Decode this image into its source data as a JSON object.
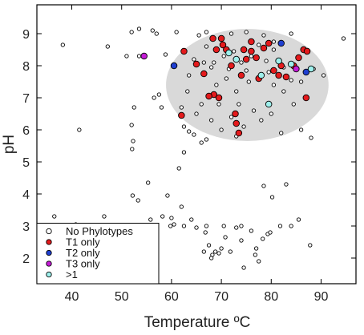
{
  "chart_data": {
    "type": "scatter",
    "xlabel": "Temperature ºC",
    "ylabel": "pH",
    "xlim": [
      33,
      97
    ],
    "ylim": [
      1.2,
      9.9
    ],
    "xticks": [
      40,
      50,
      60,
      70,
      80,
      90
    ],
    "yticks": [
      2,
      3,
      4,
      5,
      6,
      7,
      8,
      9
    ],
    "grid": false,
    "legend_position": "bottom-left",
    "highlight_region": {
      "shape": "ellipse",
      "fill": "#d9d9d9",
      "center": [
        75.2,
        7.4
      ],
      "x_radius": 16.3,
      "y_radius": 1.75
    },
    "series": [
      {
        "name": "No Phylotypes",
        "color": "#ffffff",
        "edge": "#000000",
        "size": "small",
        "points": [
          [
            38.2,
            8.65
          ],
          [
            41.5,
            6.0
          ],
          [
            36.5,
            3.3
          ],
          [
            40.8,
            3.05
          ],
          [
            46.5,
            3.3
          ],
          [
            47.2,
            8.6
          ],
          [
            49.0,
            2.7
          ],
          [
            50.0,
            3.0
          ],
          [
            48.5,
            2.3
          ],
          [
            51.0,
            8.3
          ],
          [
            52.0,
            9.05
          ],
          [
            53.5,
            9.15
          ],
          [
            53.5,
            8.3
          ],
          [
            52.5,
            6.7
          ],
          [
            52.0,
            6.15
          ],
          [
            52.3,
            5.65
          ],
          [
            52.1,
            5.4
          ],
          [
            53.3,
            3.8
          ],
          [
            53.8,
            3.0
          ],
          [
            52.2,
            3.95
          ],
          [
            56.2,
            9.1
          ],
          [
            57.0,
            9.0
          ],
          [
            57.5,
            7.1
          ],
          [
            56.5,
            7.0
          ],
          [
            58.0,
            6.7
          ],
          [
            55.3,
            4.35
          ],
          [
            55.8,
            3.2
          ],
          [
            58.2,
            3.3
          ],
          [
            59.2,
            3.95
          ],
          [
            59.8,
            3.0
          ],
          [
            60.5,
            3.05
          ],
          [
            61.5,
            4.8
          ],
          [
            62.5,
            5.3
          ],
          [
            64.0,
            3.2
          ],
          [
            65.0,
            2.95
          ],
          [
            61.0,
            9.05
          ],
          [
            58.8,
            8.35
          ],
          [
            64.5,
            5.85
          ],
          [
            66.0,
            5.6
          ],
          [
            67.0,
            5.7
          ],
          [
            62.0,
            6.7
          ],
          [
            65.0,
            6.5
          ],
          [
            67.0,
            3.0
          ],
          [
            67.5,
            2.4
          ],
          [
            68.2,
            2.1
          ],
          [
            68.8,
            2.2
          ],
          [
            69.5,
            2.15
          ],
          [
            70.8,
            2.65
          ],
          [
            70.5,
            3.0
          ],
          [
            71.8,
            2.2
          ],
          [
            68.0,
            2.0
          ],
          [
            70.0,
            2.3
          ],
          [
            73.0,
            2.95
          ],
          [
            74.0,
            2.55
          ],
          [
            76.0,
            2.85
          ],
          [
            76.8,
            2.1
          ],
          [
            77.0,
            2.3
          ],
          [
            78.3,
            2.6
          ],
          [
            79.3,
            2.75
          ],
          [
            79.8,
            2.8
          ],
          [
            78.5,
            4.25
          ],
          [
            80.2,
            3.9
          ],
          [
            81.8,
            3.0
          ],
          [
            83.0,
            4.3
          ],
          [
            84.0,
            3.0
          ],
          [
            85.5,
            3.2
          ],
          [
            87.8,
            2.4
          ],
          [
            77.5,
            1.9
          ],
          [
            74.5,
            1.7
          ],
          [
            74.0,
            3.0
          ],
          [
            86.0,
            6.0
          ],
          [
            88.0,
            5.75
          ],
          [
            82.0,
            5.9
          ],
          [
            84.5,
            6.8
          ],
          [
            80.0,
            6.5
          ],
          [
            78.0,
            6.3
          ],
          [
            72.0,
            6.4
          ],
          [
            70.0,
            6.0
          ],
          [
            68.0,
            6.3
          ],
          [
            66.0,
            6.8
          ],
          [
            69.0,
            7.4
          ],
          [
            71.0,
            7.6
          ],
          [
            73.0,
            7.2
          ],
          [
            75.5,
            7.5
          ],
          [
            78.0,
            7.7
          ],
          [
            80.5,
            7.4
          ],
          [
            82.5,
            7.2
          ],
          [
            84.0,
            7.55
          ],
          [
            86.0,
            7.5
          ],
          [
            88.5,
            7.9
          ],
          [
            90.5,
            7.7
          ],
          [
            94.5,
            8.85
          ],
          [
            65.5,
            8.95
          ],
          [
            67.0,
            8.6
          ],
          [
            68.5,
            8.1
          ],
          [
            70.5,
            8.3
          ],
          [
            72.5,
            8.45
          ],
          [
            74.0,
            8.1
          ],
          [
            76.0,
            8.3
          ],
          [
            77.5,
            8.65
          ],
          [
            79.0,
            8.15
          ],
          [
            80.5,
            8.5
          ],
          [
            81.5,
            8.15
          ],
          [
            82.5,
            7.95
          ],
          [
            79.5,
            7.8
          ],
          [
            75.0,
            7.85
          ],
          [
            71.5,
            7.9
          ],
          [
            68.0,
            7.95
          ],
          [
            73.5,
            6.8
          ],
          [
            76.5,
            6.6
          ],
          [
            69.5,
            6.8
          ],
          [
            63.5,
            7.7
          ],
          [
            64.5,
            8.2
          ],
          [
            66.5,
            8.1
          ],
          [
            67.0,
            9.05
          ],
          [
            72.0,
            9.0
          ],
          [
            75.0,
            9.05
          ],
          [
            78.5,
            8.95
          ],
          [
            80.5,
            8.75
          ],
          [
            84.0,
            9.0
          ],
          [
            62.5,
            6.1
          ],
          [
            63.5,
            5.95
          ],
          [
            74.5,
            6.1
          ],
          [
            73.0,
            5.8
          ],
          [
            63.2,
            7.2
          ],
          [
            60.0,
            3.25
          ],
          [
            62.5,
            3.0
          ],
          [
            66.5,
            2.2
          ],
          [
            66.8,
            2.8
          ],
          [
            62.0,
            3.6
          ]
        ]
      },
      {
        "name": "T1 only",
        "color": "#e41a1c",
        "edge": "#000000",
        "size": "large",
        "points": [
          [
            62.5,
            8.45
          ],
          [
            65.0,
            8.05
          ],
          [
            66.5,
            7.75
          ],
          [
            68.5,
            7.1
          ],
          [
            67.5,
            7.05
          ],
          [
            69.5,
            7.0
          ],
          [
            70.0,
            8.85
          ],
          [
            70.3,
            8.65
          ],
          [
            71.0,
            8.5
          ],
          [
            72.0,
            8.0
          ],
          [
            72.8,
            6.5
          ],
          [
            73.0,
            6.2
          ],
          [
            73.5,
            5.9
          ],
          [
            74.0,
            7.7
          ],
          [
            74.5,
            8.5
          ],
          [
            76.0,
            8.45
          ],
          [
            76.0,
            8.75
          ],
          [
            77.5,
            7.6
          ],
          [
            78.5,
            8.55
          ],
          [
            79.5,
            8.7
          ],
          [
            80.5,
            7.85
          ],
          [
            81.5,
            7.7
          ],
          [
            82.0,
            8.0
          ],
          [
            83.0,
            7.65
          ],
          [
            84.5,
            8.0
          ],
          [
            85.5,
            8.25
          ],
          [
            86.5,
            8.5
          ],
          [
            87.2,
            8.45
          ],
          [
            87.0,
            7.0
          ],
          [
            62.0,
            6.45
          ],
          [
            69.0,
            8.5
          ],
          [
            68.3,
            8.85
          ],
          [
            75.0,
            8.2
          ],
          [
            77.0,
            8.25
          ]
        ]
      },
      {
        "name": "T2 only",
        "color": "#1f3fd1",
        "edge": "#000000",
        "size": "large",
        "points": [
          [
            60.5,
            8.0
          ],
          [
            82.0,
            8.7
          ],
          [
            87.0,
            7.8
          ]
        ]
      },
      {
        "name": "T3 only",
        "color": "#c41bd6",
        "edge": "#000000",
        "size": "large",
        "points": [
          [
            54.5,
            8.3
          ],
          [
            85.0,
            7.9
          ]
        ]
      },
      {
        "name": ">1",
        "color": "#9ef0ec",
        "edge": "#000000",
        "size": "large",
        "points": [
          [
            71.5,
            8.4
          ],
          [
            73.0,
            8.2
          ],
          [
            78.0,
            7.7
          ],
          [
            79.5,
            6.8
          ],
          [
            81.5,
            8.15
          ],
          [
            84.0,
            8.05
          ],
          [
            88.0,
            7.9
          ]
        ]
      }
    ]
  }
}
